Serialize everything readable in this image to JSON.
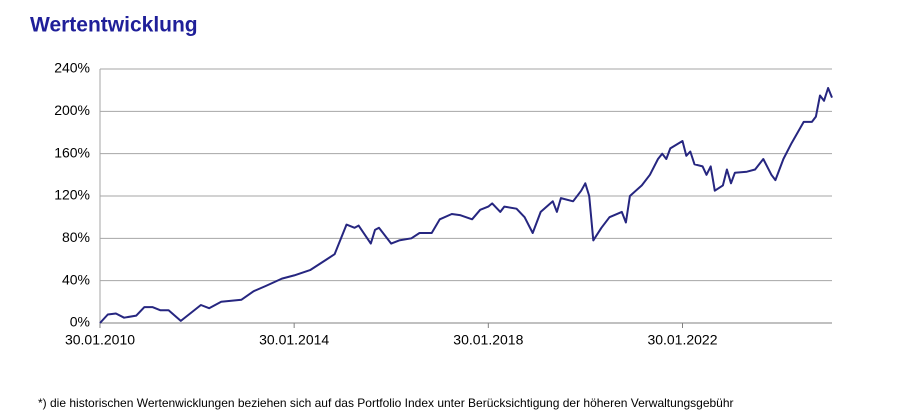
{
  "chart_data": {
    "type": "line",
    "title": "Wertentwicklung",
    "footnote": "*) die historischen Wertenwicklungen beziehen sich auf das Portfolio Index unter Berücksichtigung der höheren Verwaltungsgebühr",
    "x": [
      "2010-01-30",
      "2010-03-30",
      "2010-05-30",
      "2010-07-30",
      "2010-10-30",
      "2010-12-30",
      "2011-02-28",
      "2011-04-30",
      "2011-06-30",
      "2011-09-30",
      "2011-11-30",
      "2012-02-28",
      "2012-04-30",
      "2012-07-30",
      "2012-12-30",
      "2013-03-30",
      "2013-06-30",
      "2013-10-30",
      "2014-01-30",
      "2014-05-30",
      "2014-09-30",
      "2014-11-30",
      "2015-02-28",
      "2015-04-30",
      "2015-05-30",
      "2015-08-30",
      "2015-09-30",
      "2015-10-30",
      "2016-01-30",
      "2016-03-30",
      "2016-06-30",
      "2016-08-30",
      "2016-11-30",
      "2017-01-30",
      "2017-04-30",
      "2017-06-30",
      "2017-09-30",
      "2017-11-30",
      "2018-01-30",
      "2018-02-28",
      "2018-04-30",
      "2018-05-30",
      "2018-08-30",
      "2018-10-30",
      "2018-12-30",
      "2019-02-28",
      "2019-05-30",
      "2019-06-30",
      "2019-07-30",
      "2019-10-30",
      "2019-12-30",
      "2020-01-30",
      "2020-02-28",
      "2020-03-30",
      "2020-05-30",
      "2020-07-30",
      "2020-10-30",
      "2020-11-30",
      "2020-12-30",
      "2021-03-30",
      "2021-05-30",
      "2021-07-30",
      "2021-08-30",
      "2021-09-30",
      "2021-10-30",
      "2022-01-30",
      "2022-02-28",
      "2022-03-30",
      "2022-04-30",
      "2022-06-30",
      "2022-07-30",
      "2022-08-30",
      "2022-09-30",
      "2022-11-30",
      "2022-12-30",
      "2023-01-30",
      "2023-02-28",
      "2023-05-30",
      "2023-07-30",
      "2023-09-30",
      "2023-11-30",
      "2023-12-30",
      "2024-02-28",
      "2024-04-30",
      "2024-07-30",
      "2024-09-30",
      "2024-10-30",
      "2024-11-30",
      "2024-12-30",
      "2025-01-30",
      "2025-02-28"
    ],
    "series": [
      {
        "color": "#262680",
        "values": [
          0,
          8,
          9,
          5,
          7,
          15,
          15,
          12,
          12,
          2,
          8,
          17,
          14,
          20,
          22,
          30,
          35,
          42,
          45,
          50,
          60,
          65,
          93,
          90,
          92,
          75,
          88,
          90,
          75,
          78,
          80,
          85,
          85,
          98,
          103,
          102,
          98,
          107,
          110,
          113,
          105,
          110,
          108,
          100,
          85,
          105,
          115,
          105,
          118,
          115,
          125,
          132,
          120,
          78,
          90,
          100,
          105,
          95,
          120,
          130,
          140,
          155,
          160,
          155,
          165,
          172,
          158,
          162,
          150,
          148,
          140,
          148,
          125,
          130,
          145,
          132,
          142,
          143,
          145,
          155,
          140,
          135,
          155,
          170,
          190,
          190,
          195,
          215,
          210,
          222,
          213
        ]
      }
    ],
    "xlim": [
      "2010-01-30",
      "2025-02-28"
    ],
    "xticks": [
      {
        "value": "2010-01-30",
        "label": "30.01.2010"
      },
      {
        "value": "2014-01-30",
        "label": "30.01.2014"
      },
      {
        "value": "2018-01-30",
        "label": "30.01.2018"
      },
      {
        "value": "2022-01-30",
        "label": "30.01.2022"
      }
    ],
    "ylim": [
      0,
      240
    ],
    "yticks": [
      {
        "value": 0,
        "label": "0%"
      },
      {
        "value": 40,
        "label": "40%"
      },
      {
        "value": 80,
        "label": "80%"
      },
      {
        "value": 120,
        "label": "120%"
      },
      {
        "value": 160,
        "label": "160%"
      },
      {
        "value": 200,
        "label": "200%"
      },
      {
        "value": 240,
        "label": "240%"
      }
    ],
    "grid": true
  }
}
